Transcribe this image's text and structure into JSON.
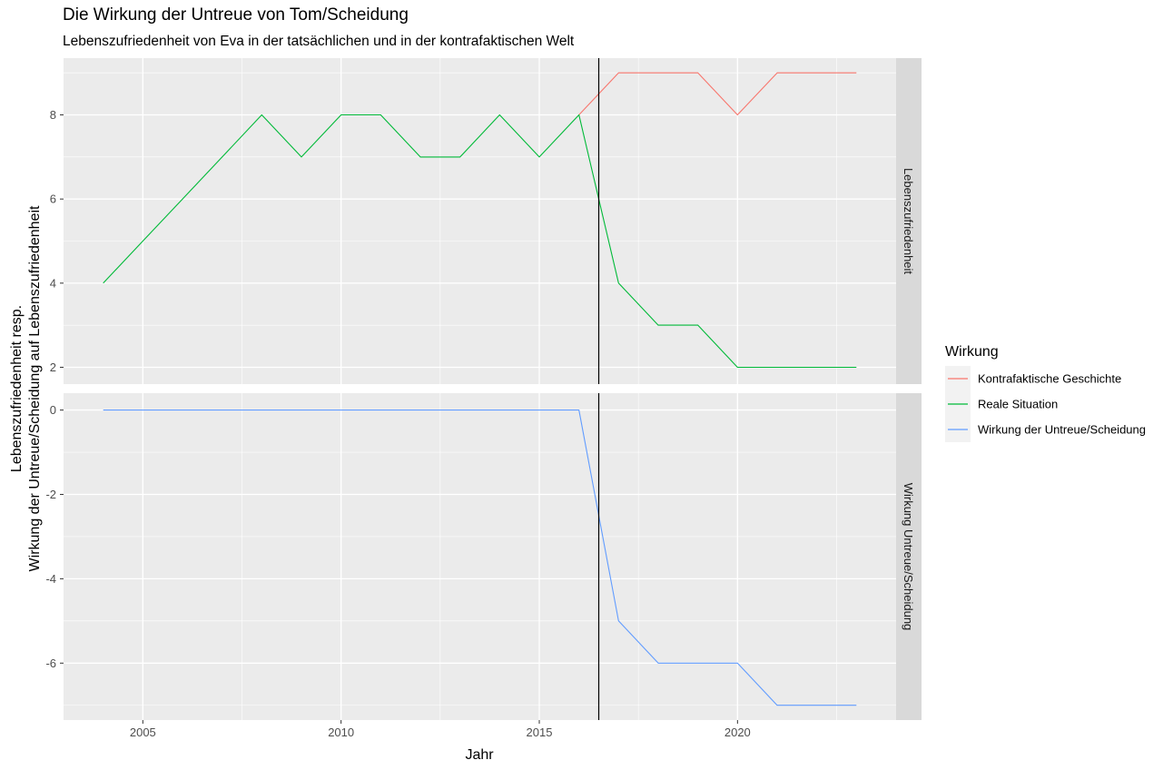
{
  "chart_data": {
    "type": "line",
    "title": "Die Wirkung der Untreue von Tom/Scheidung",
    "subtitle": "Lebenszufriedenheit von Eva in der tatsächlichen und in der kontrafaktischen Welt",
    "xlabel": "Jahr",
    "ylabel_line1": "Lebenszufriedenheit resp.",
    "ylabel_line2": "Wirkung der Untreue/Scheidung auf Lebenszufriedenheit",
    "xlim": [
      2003,
      2024
    ],
    "x_ticks": [
      2005,
      2010,
      2015,
      2020
    ],
    "vline_x": 2016.5,
    "legend": {
      "title": "Wirkung",
      "position": "right",
      "entries": [
        {
          "label": "Kontrafaktische Geschichte",
          "color": "#F8766D"
        },
        {
          "label": "Reale Situation",
          "color": "#00BA38"
        },
        {
          "label": "Wirkung der Untreue/Scheidung",
          "color": "#619CFF"
        }
      ]
    },
    "panels": [
      {
        "strip": "Lebenszufriedenheit",
        "ylim": [
          1.6,
          9.35
        ],
        "y_ticks": [
          2,
          4,
          6,
          8
        ],
        "series": [
          {
            "name": "Kontrafaktische Geschichte",
            "color": "#F8766D",
            "x": [
              2016,
              2017,
              2018,
              2019,
              2020,
              2021,
              2022,
              2023
            ],
            "y": [
              8,
              9,
              9,
              9,
              8,
              9,
              9,
              9
            ]
          },
          {
            "name": "Reale Situation",
            "color": "#00BA38",
            "x": [
              2004,
              2005,
              2006,
              2007,
              2008,
              2009,
              2010,
              2011,
              2012,
              2013,
              2014,
              2015,
              2016,
              2017,
              2018,
              2019,
              2020,
              2021,
              2022,
              2023
            ],
            "y": [
              4,
              5,
              6,
              7,
              8,
              7,
              8,
              8,
              7,
              7,
              8,
              7,
              8,
              4,
              3,
              3,
              2,
              2,
              2,
              2
            ]
          }
        ]
      },
      {
        "strip": "Wirkung Untreue/Scheidung",
        "ylim": [
          -7.35,
          0.4
        ],
        "y_ticks": [
          0,
          -2,
          -4,
          -6
        ],
        "series": [
          {
            "name": "Wirkung der Untreue/Scheidung",
            "color": "#619CFF",
            "x": [
              2004,
              2005,
              2006,
              2007,
              2008,
              2009,
              2010,
              2011,
              2012,
              2013,
              2014,
              2015,
              2016,
              2017,
              2018,
              2019,
              2020,
              2021,
              2022,
              2023
            ],
            "y": [
              0,
              0,
              0,
              0,
              0,
              0,
              0,
              0,
              0,
              0,
              0,
              0,
              0,
              -5,
              -6,
              -6,
              -6,
              -7,
              -7,
              -7
            ]
          }
        ]
      }
    ]
  }
}
